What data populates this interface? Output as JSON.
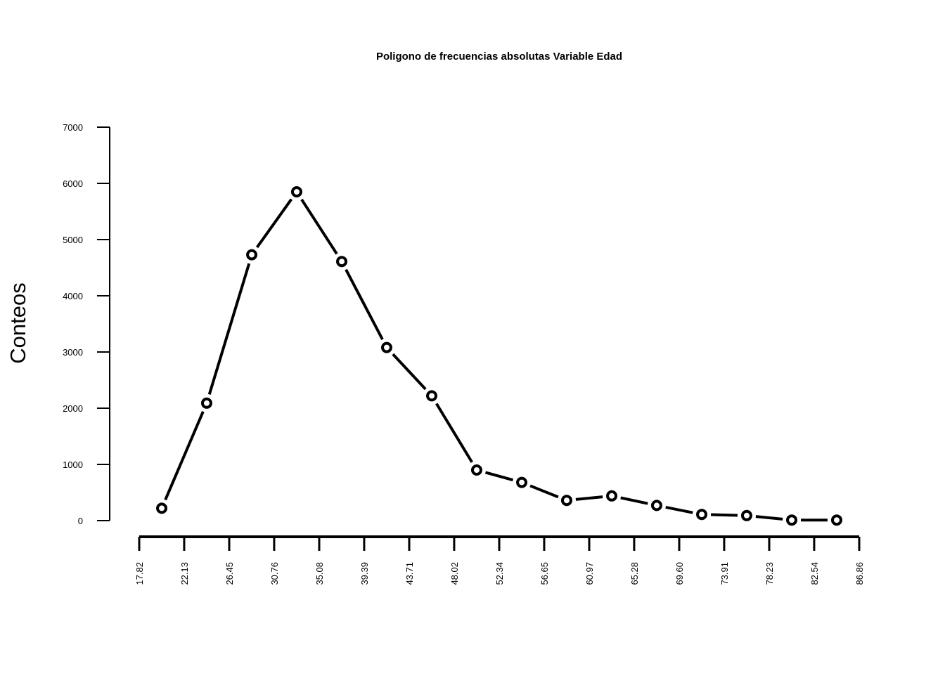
{
  "chart_data": {
    "type": "line",
    "title": "Poligono de frecuencias absolutas Variable Edad",
    "xlabel": "",
    "ylabel": "Conteos",
    "x_tick_labels": [
      "17.82",
      "22.13",
      "26.45",
      "30.76",
      "35.08",
      "39.39",
      "43.71",
      "48.02",
      "52.34",
      "56.65",
      "60.97",
      "65.28",
      "69.60",
      "73.91",
      "78.23",
      "82.54",
      "86.86"
    ],
    "y_tick_labels": [
      "0",
      "1000",
      "2000",
      "3000",
      "4000",
      "5000",
      "6000",
      "7000"
    ],
    "xlim": [
      17.82,
      86.86
    ],
    "ylim": [
      0,
      7000
    ],
    "grid": false,
    "series": [
      {
        "x": [
          19.98,
          24.29,
          28.61,
          32.92,
          37.24,
          41.55,
          45.87,
          50.18,
          54.5,
          58.81,
          63.13,
          67.44,
          71.76,
          76.07,
          80.39,
          84.7
        ],
        "values": [
          220,
          2090,
          4730,
          5850,
          4610,
          3080,
          2220,
          900,
          680,
          360,
          440,
          270,
          110,
          90,
          10,
          10
        ],
        "style": {
          "line": "solid",
          "marker": "open-circle",
          "color": "#000000"
        }
      }
    ]
  }
}
